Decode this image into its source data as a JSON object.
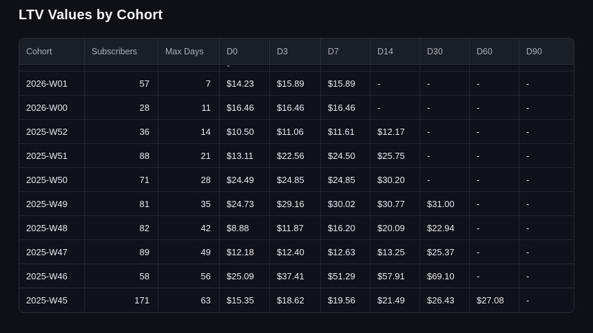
{
  "page": {
    "title": "LTV Values by Cohort"
  },
  "table": {
    "headers": [
      "Cohort",
      "Subscribers",
      "Max Days",
      "D0",
      "D3",
      "D7",
      "D14",
      "D30",
      "D60",
      "D90"
    ],
    "rows": [
      [
        "2026-W01",
        "57",
        "7",
        "$14.23",
        "$15.89",
        "$15.89",
        "-",
        "-",
        "-",
        "-"
      ],
      [
        "2026-W00",
        "28",
        "11",
        "$16.46",
        "$16.46",
        "$16.46",
        "-",
        "-",
        "-",
        "-"
      ],
      [
        "2025-W52",
        "36",
        "14",
        "$10.50",
        "$11.06",
        "$11.61",
        "$12.17",
        "-",
        "-",
        "-"
      ],
      [
        "2025-W51",
        "88",
        "21",
        "$13.11",
        "$22.56",
        "$24.50",
        "$25.75",
        "-",
        "-",
        "-"
      ],
      [
        "2025-W50",
        "71",
        "28",
        "$24.49",
        "$24.85",
        "$24.85",
        "$30.20",
        "-",
        "-",
        "-"
      ],
      [
        "2025-W49",
        "81",
        "35",
        "$24.73",
        "$29.16",
        "$30.02",
        "$30.77",
        "$31.00",
        "-",
        "-"
      ],
      [
        "2025-W48",
        "82",
        "42",
        "$8.88",
        "$11.87",
        "$16.20",
        "$20.09",
        "$22.94",
        "-",
        "-"
      ],
      [
        "2025-W47",
        "89",
        "49",
        "$12.18",
        "$12.40",
        "$12.63",
        "$13.25",
        "$25.37",
        "-",
        "-"
      ],
      [
        "2025-W46",
        "58",
        "56",
        "$25.09",
        "$37.41",
        "$51.29",
        "$57.91",
        "$69.10",
        "-",
        "-"
      ],
      [
        "2025-W45",
        "171",
        "63",
        "$15.35",
        "$18.62",
        "$19.56",
        "$21.49",
        "$26.43",
        "$27.08",
        "-"
      ]
    ]
  },
  "colors": {
    "page_background": "#0d1015",
    "table_background": "#0f1218",
    "header_background": "#1a1e25",
    "border": "#22262d",
    "outer_border": "#2a2e36",
    "title_text": "#f4f6f8",
    "header_text": "#aab0b8",
    "cell_text": "#e8eaed"
  }
}
